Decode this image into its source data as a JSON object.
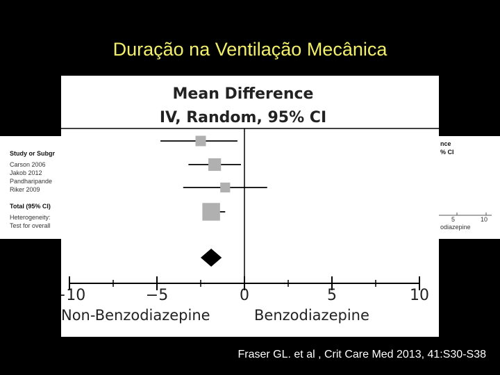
{
  "slide": {
    "title": "Duração na Ventilação Mecânica",
    "citation": "Fraser GL. et al , Crit Care Med 2013, 41:S30-S38"
  },
  "background_table": {
    "left_lines": [
      {
        "text": "Study or Subgr",
        "bold": true
      },
      {
        "text": "Carson 2006",
        "bold": false
      },
      {
        "text": "Jakob 2012",
        "bold": false
      },
      {
        "text": "Pandharipande",
        "bold": false
      },
      {
        "text": "Riker 2009",
        "bold": false
      },
      {
        "text": "Total (95% CI)",
        "bold": true
      },
      {
        "text": "Heterogeneity:",
        "bold": false
      },
      {
        "text": "Test for overall",
        "bold": false
      }
    ],
    "right_lines": [
      {
        "text": "nce",
        "bold": true
      },
      {
        "text": "% CI",
        "bold": true
      }
    ],
    "right_axis_ticks": [
      "5",
      "10"
    ],
    "right_axis_label": "odiazepine"
  },
  "chart_data": {
    "type": "forest",
    "title_line1": "Mean Difference",
    "title_line2": "IV, Random, 95% CI",
    "xlim": [
      -10,
      10
    ],
    "x_ticks": [
      -10,
      -5,
      0,
      5,
      10
    ],
    "x_tick_labels": [
      "−10",
      "−5",
      "0",
      "5",
      "10"
    ],
    "left_label": "Non-Benzodiazepine",
    "right_label": "Benzodiazepine",
    "studies": [
      {
        "estimate": -2.5,
        "ci_low": -4.8,
        "ci_high": -0.4,
        "weight": 0.12
      },
      {
        "estimate": -1.7,
        "ci_low": -3.2,
        "ci_high": -0.2,
        "weight": 0.22
      },
      {
        "estimate": -1.1,
        "ci_low": -3.5,
        "ci_high": 1.3,
        "weight": 0.1
      },
      {
        "estimate": -1.9,
        "ci_low": -2.4,
        "ci_high": -1.1,
        "weight": 0.56
      }
    ],
    "total": {
      "estimate": -1.9,
      "ci_low": -2.5,
      "ci_high": -1.3
    },
    "colors": {
      "marker": "#b0b0b0",
      "line": "#000000",
      "diamond": "#000000"
    }
  }
}
